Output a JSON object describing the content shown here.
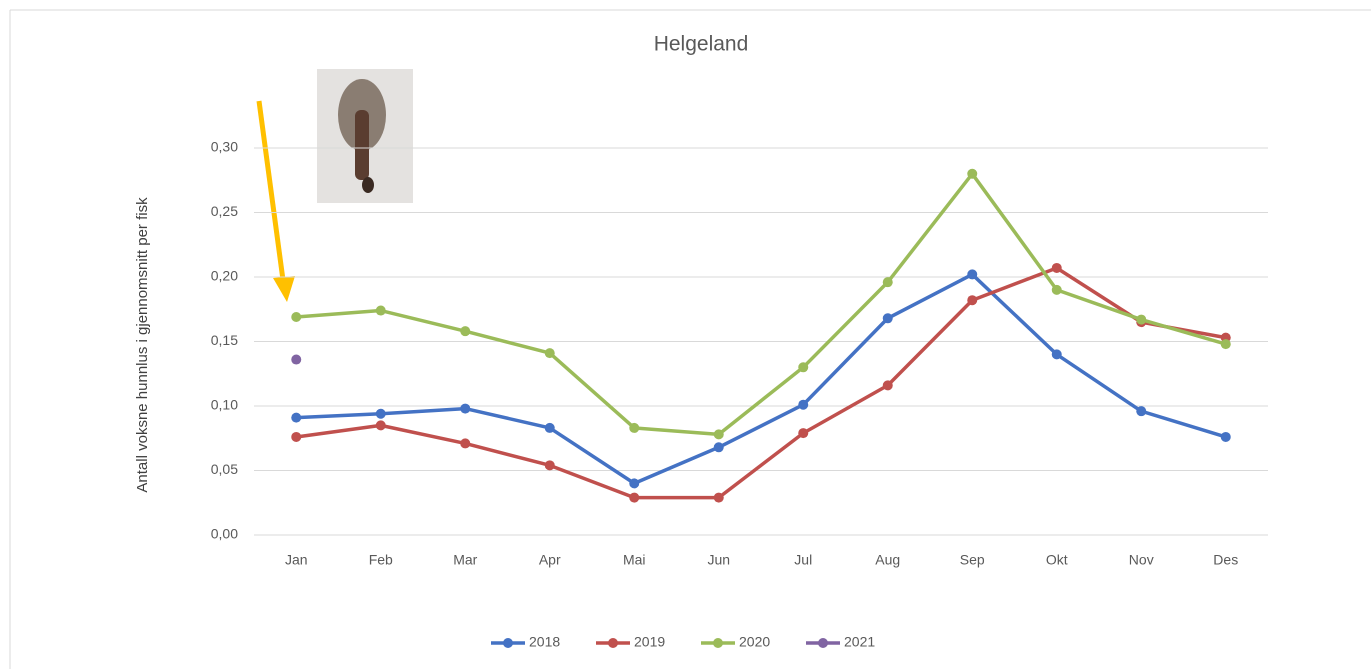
{
  "chart_data": {
    "type": "line",
    "title": "Helgeland",
    "y_label": "Antall voksne hunnlus i gjennomsnitt per fisk",
    "categories": [
      "Jan",
      "Feb",
      "Mar",
      "Apr",
      "Mai",
      "Jun",
      "Jul",
      "Aug",
      "Sep",
      "Okt",
      "Nov",
      "Des"
    ],
    "series": [
      {
        "name": "2018",
        "color": "#4472c4",
        "values": [
          0.091,
          0.094,
          0.098,
          0.083,
          0.04,
          0.068,
          0.101,
          0.168,
          0.202,
          0.14,
          0.096,
          0.076
        ]
      },
      {
        "name": "2019",
        "color": "#c0504d",
        "values": [
          0.076,
          0.085,
          0.071,
          0.054,
          0.029,
          0.029,
          0.079,
          0.116,
          0.182,
          0.207,
          0.165,
          0.153
        ]
      },
      {
        "name": "2020",
        "color": "#9bbb59",
        "values": [
          0.169,
          0.174,
          0.158,
          0.141,
          0.083,
          0.078,
          0.13,
          0.196,
          0.28,
          0.19,
          0.167,
          0.148
        ]
      },
      {
        "name": "2021",
        "color": "#8064a2",
        "values": [
          0.136,
          null,
          null,
          null,
          null,
          null,
          null,
          null,
          null,
          null,
          null,
          null
        ]
      }
    ],
    "ylim": [
      0,
      0.3
    ],
    "yticks": [
      {
        "value": 0,
        "label": "0,00"
      },
      {
        "value": 0.05,
        "label": "0,05"
      },
      {
        "value": 0.1,
        "label": "0,10"
      },
      {
        "value": 0.15,
        "label": "0,15"
      },
      {
        "value": 0.2,
        "label": "0,20"
      },
      {
        "value": 0.25,
        "label": "0,25"
      },
      {
        "value": 0.3,
        "label": "0,30"
      }
    ],
    "grid": true,
    "legend": "bottom"
  }
}
